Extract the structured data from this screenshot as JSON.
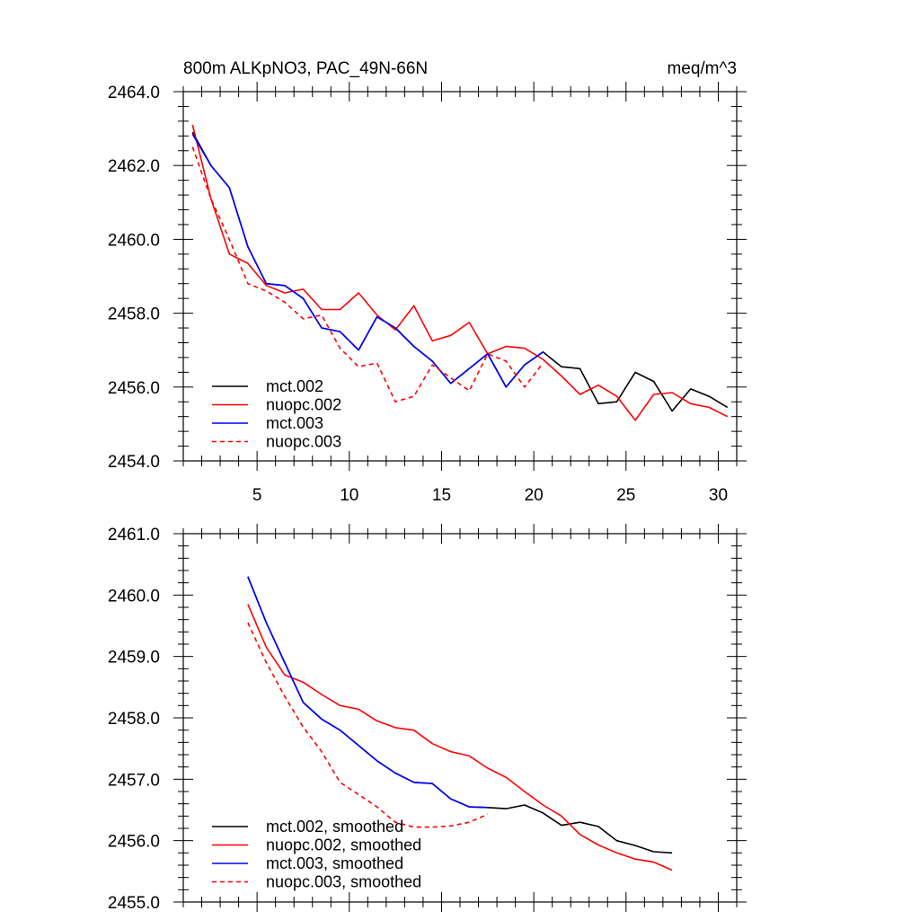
{
  "chart_data": [
    {
      "type": "line",
      "title": "800m ALKpNO3, PAC_49N-66N",
      "units": "meq/m^3",
      "xlim": [
        1,
        31
      ],
      "ylim": [
        2454,
        2464
      ],
      "x_ticks": [
        5,
        10,
        15,
        20,
        25,
        30
      ],
      "y_ticks": [
        2454,
        2456,
        2458,
        2460,
        2462,
        2464
      ],
      "y_tick_labels": [
        "2454.0",
        "2456.0",
        "2458.0",
        "2460.0",
        "2462.0",
        "2464.0"
      ],
      "legend_position": "bottom-left",
      "series": [
        {
          "name": "mct.002",
          "color": "#000000",
          "dash": "solid",
          "x": [
            1.5,
            2.5,
            3.5,
            4.5,
            5.5,
            6.5,
            7.5,
            8.5,
            9.5,
            10.5,
            11.5,
            12.5,
            13.5,
            14.5,
            15.5,
            16.5,
            17.5,
            18.5,
            19.5,
            20.5,
            21.5,
            22.5,
            23.5,
            24.5,
            25.5,
            26.5,
            27.5,
            28.5,
            29.5,
            30.5
          ],
          "y": [
            2462.9,
            2462.0,
            2461.4,
            2459.8,
            2458.8,
            2458.75,
            2458.4,
            2457.6,
            2457.5,
            2457.0,
            2457.9,
            2457.6,
            2457.1,
            2456.7,
            2456.1,
            2456.5,
            2456.9,
            2456.0,
            2456.6,
            2456.95,
            2456.55,
            2456.5,
            2455.55,
            2455.6,
            2456.4,
            2456.15,
            2455.35,
            2455.95,
            2455.75,
            2455.45
          ]
        },
        {
          "name": "nuopc.002",
          "color": "#ff0000",
          "dash": "solid",
          "x": [
            1.5,
            2.5,
            3.5,
            4.5,
            5.5,
            6.5,
            7.5,
            8.5,
            9.5,
            10.5,
            11.5,
            12.5,
            13.5,
            14.5,
            15.5,
            16.5,
            17.5,
            18.5,
            19.5,
            20.5,
            21.5,
            22.5,
            23.5,
            24.5,
            25.5,
            26.5,
            27.5,
            28.5,
            29.5,
            30.5
          ],
          "y": [
            2463.1,
            2461.1,
            2459.6,
            2459.35,
            2458.75,
            2458.55,
            2458.65,
            2458.1,
            2458.1,
            2458.55,
            2457.95,
            2457.55,
            2458.2,
            2457.25,
            2457.4,
            2457.75,
            2456.9,
            2457.1,
            2457.05,
            2456.75,
            2456.3,
            2455.8,
            2456.05,
            2455.75,
            2455.1,
            2455.8,
            2455.85,
            2455.55,
            2455.45,
            2455.2
          ]
        },
        {
          "name": "mct.003",
          "color": "#0000ff",
          "dash": "solid",
          "x": [
            1.5,
            2.5,
            3.5,
            4.5,
            5.5,
            6.5,
            7.5,
            8.5,
            9.5,
            10.5,
            11.5,
            12.5,
            13.5,
            14.5,
            15.5,
            16.5,
            17.5,
            18.5,
            19.5,
            20.5
          ],
          "y": [
            2462.85,
            2462.0,
            2461.4,
            2459.8,
            2458.8,
            2458.75,
            2458.4,
            2457.6,
            2457.5,
            2457.0,
            2457.9,
            2457.6,
            2457.1,
            2456.7,
            2456.1,
            2456.5,
            2456.9,
            2456.0,
            2456.6,
            2456.95
          ]
        },
        {
          "name": "nuopc.003",
          "color": "#ff0000",
          "dash": "dashed",
          "x": [
            1.5,
            2.5,
            3.5,
            4.5,
            5.5,
            6.5,
            7.5,
            8.5,
            9.5,
            10.5,
            11.5,
            12.5,
            13.5,
            14.5,
            15.5,
            16.5,
            17.5,
            18.5,
            19.5,
            20.5
          ],
          "y": [
            2462.5,
            2461.1,
            2460.0,
            2458.8,
            2458.6,
            2458.3,
            2457.85,
            2457.95,
            2457.05,
            2456.55,
            2456.65,
            2455.6,
            2455.75,
            2456.6,
            2456.25,
            2455.9,
            2456.9,
            2456.7,
            2456.0,
            2456.65
          ]
        }
      ]
    },
    {
      "type": "line",
      "xlim": [
        1,
        31
      ],
      "ylim": [
        2455,
        2461
      ],
      "x_ticks": [
        5,
        10,
        15,
        20,
        25,
        30
      ],
      "y_ticks": [
        2455,
        2456,
        2457,
        2458,
        2459,
        2460,
        2461
      ],
      "y_tick_labels": [
        "2455.0",
        "2456.0",
        "2457.0",
        "2458.0",
        "2459.0",
        "2460.0",
        "2461.0"
      ],
      "legend_position": "bottom-left",
      "series": [
        {
          "name": "mct.002, smoothed",
          "color": "#000000",
          "dash": "solid",
          "x": [
            4.5,
            5.5,
            6.5,
            7.5,
            8.5,
            9.5,
            10.5,
            11.5,
            12.5,
            13.5,
            14.5,
            15.5,
            16.5,
            17.5,
            18.5,
            19.5,
            20.5,
            21.5,
            22.5,
            23.5,
            24.5,
            25.5,
            26.5,
            27.5
          ],
          "y": [
            2460.3,
            2459.55,
            2458.9,
            2458.25,
            2457.98,
            2457.8,
            2457.55,
            2457.3,
            2457.1,
            2456.95,
            2456.93,
            2456.68,
            2456.55,
            2456.54,
            2456.52,
            2456.58,
            2456.45,
            2456.25,
            2456.3,
            2456.23,
            2456.0,
            2455.92,
            2455.82,
            2455.8
          ]
        },
        {
          "name": "nuopc.002, smoothed",
          "color": "#ff0000",
          "dash": "solid",
          "x": [
            4.5,
            5.5,
            6.5,
            7.5,
            8.5,
            9.5,
            10.5,
            11.5,
            12.5,
            13.5,
            14.5,
            15.5,
            16.5,
            17.5,
            18.5,
            19.5,
            20.5,
            21.5,
            22.5,
            23.5,
            24.5,
            25.5,
            26.5,
            27.5
          ],
          "y": [
            2459.85,
            2459.15,
            2458.7,
            2458.58,
            2458.38,
            2458.2,
            2458.14,
            2457.95,
            2457.84,
            2457.8,
            2457.58,
            2457.45,
            2457.38,
            2457.18,
            2457.03,
            2456.8,
            2456.58,
            2456.4,
            2456.1,
            2455.93,
            2455.8,
            2455.7,
            2455.65,
            2455.52
          ]
        },
        {
          "name": "mct.003, smoothed",
          "color": "#0000ff",
          "dash": "solid",
          "x": [
            4.5,
            5.5,
            6.5,
            7.5,
            8.5,
            9.5,
            10.5,
            11.5,
            12.5,
            13.5,
            14.5,
            15.5,
            16.5,
            17.5
          ],
          "y": [
            2460.3,
            2459.55,
            2458.9,
            2458.25,
            2457.98,
            2457.8,
            2457.55,
            2457.3,
            2457.1,
            2456.95,
            2456.93,
            2456.68,
            2456.55,
            2456.54
          ]
        },
        {
          "name": "nuopc.003, smoothed",
          "color": "#ff0000",
          "dash": "dashed",
          "x": [
            4.5,
            5.5,
            6.5,
            7.5,
            8.5,
            9.5,
            10.5,
            11.5,
            12.5,
            13.5,
            14.5,
            15.5,
            16.5,
            17.5
          ],
          "y": [
            2459.55,
            2458.9,
            2458.35,
            2457.85,
            2457.45,
            2456.95,
            2456.75,
            2456.55,
            2456.3,
            2456.22,
            2456.22,
            2456.24,
            2456.3,
            2456.43
          ]
        }
      ]
    }
  ]
}
